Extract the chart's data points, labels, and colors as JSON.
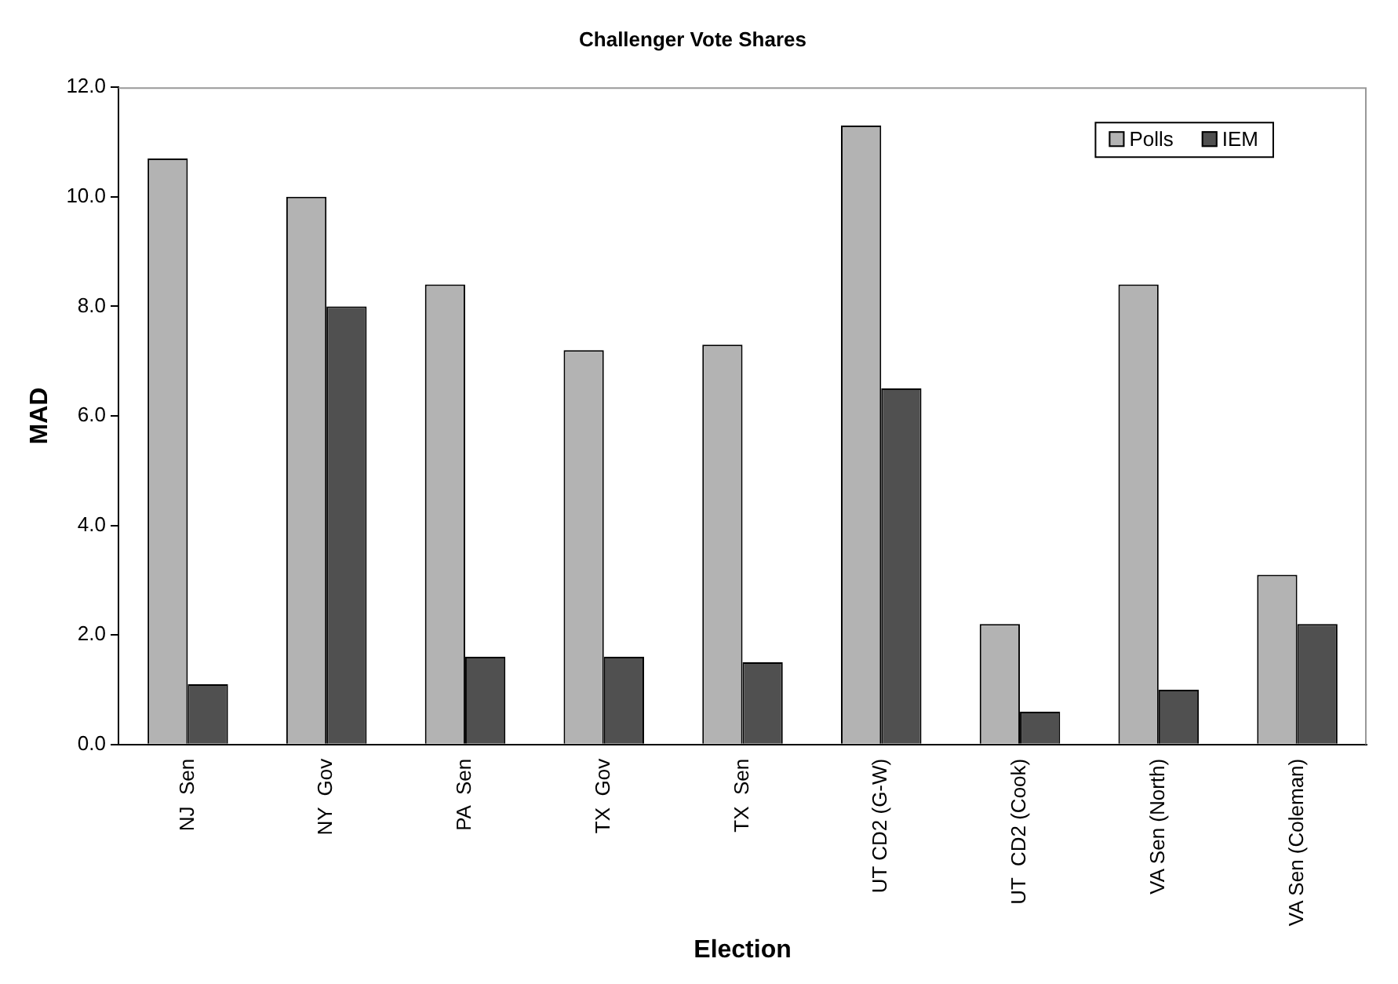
{
  "chart_data": {
    "type": "bar",
    "title": "Challenger Vote Shares",
    "xlabel": "Election",
    "ylabel": "MAD",
    "categories": [
      "NJ  Sen",
      "NY  Gov",
      "PA  Sen",
      "TX  Gov",
      "TX  Sen",
      "UT CD2 (G-W)",
      "UT  CD2 (Cook)",
      "VA Sen (North)",
      "VA Sen (Coleman)"
    ],
    "series": [
      {
        "name": "Polls",
        "color": "#b3b3b3",
        "values": [
          10.7,
          10.0,
          8.4,
          7.2,
          7.3,
          11.3,
          2.2,
          8.4,
          3.1
        ]
      },
      {
        "name": "IEM",
        "color": "#505050",
        "values": [
          1.1,
          8.0,
          1.6,
          1.6,
          1.5,
          6.5,
          0.6,
          1.0,
          2.2
        ]
      }
    ],
    "ylim": [
      0,
      12
    ],
    "yticks": [
      {
        "value": 0,
        "label": "0.0"
      },
      {
        "value": 2,
        "label": "2.0"
      },
      {
        "value": 4,
        "label": "4.0"
      },
      {
        "value": 6,
        "label": "6.0"
      },
      {
        "value": 8,
        "label": "8.0"
      },
      {
        "value": 10,
        "label": "10.0"
      },
      {
        "value": 12,
        "label": "12.0"
      }
    ],
    "grid": false,
    "legend": "top right"
  }
}
